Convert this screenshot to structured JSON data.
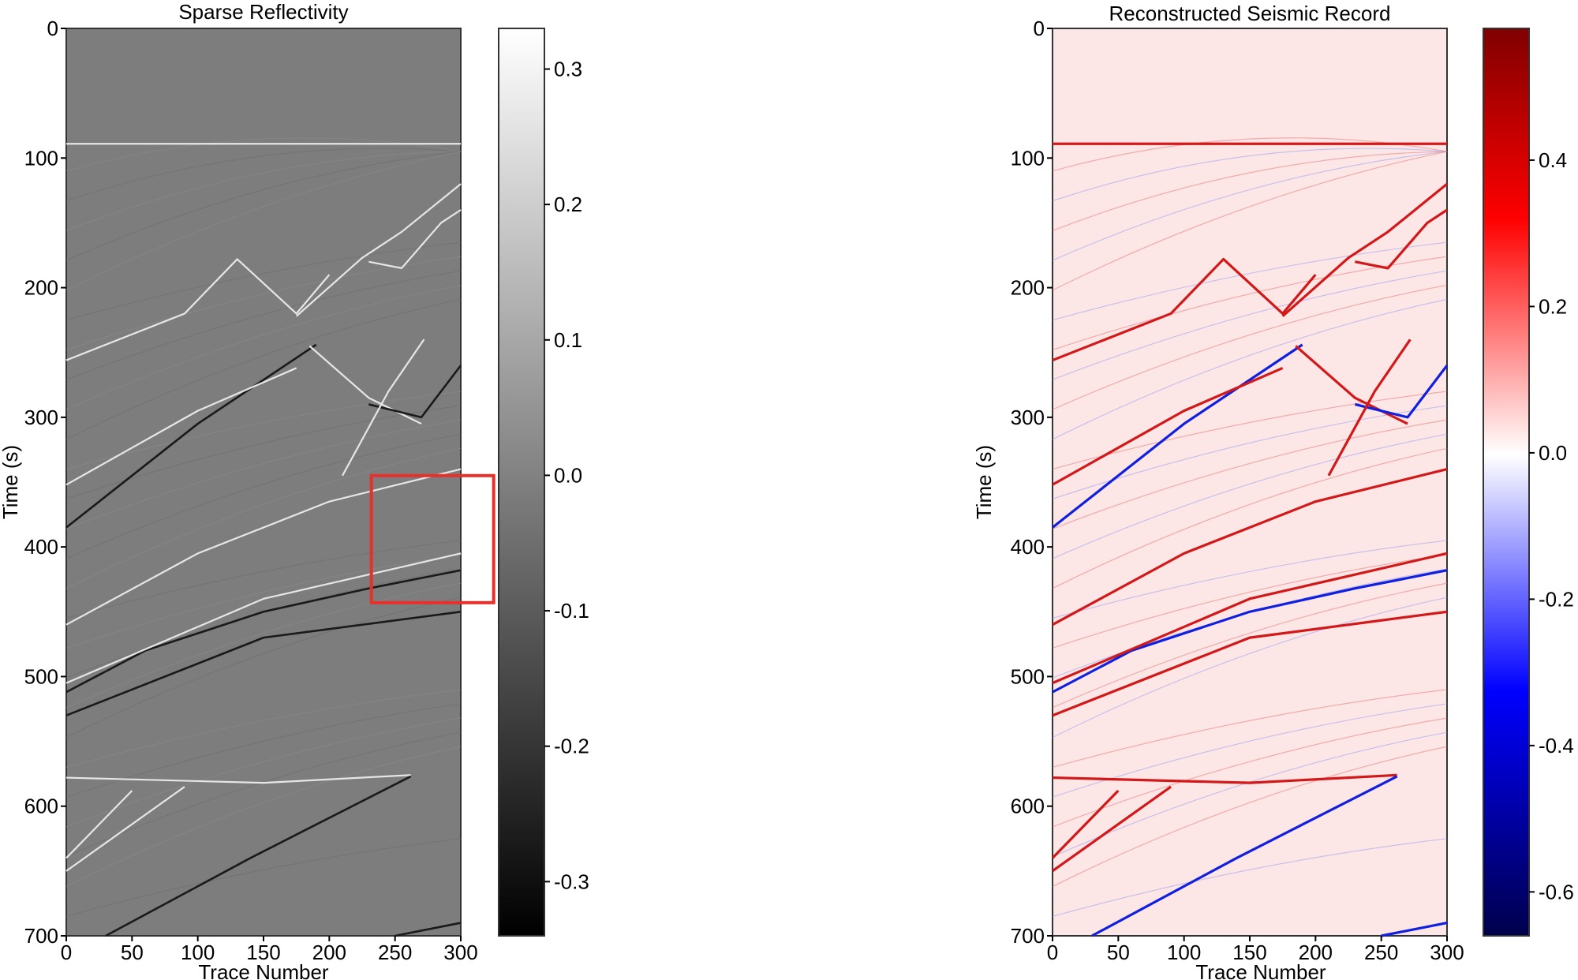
{
  "chart_data": [
    {
      "type": "heatmap",
      "title": "Sparse Reflectivity",
      "xlabel": "Trace Number",
      "ylabel": "Time (s)",
      "xlim": [
        0,
        300
      ],
      "ylim": [
        700,
        0
      ],
      "x_ticks": [
        "0",
        "50",
        "100",
        "150",
        "200",
        "250",
        "300"
      ],
      "y_ticks": [
        "0",
        "100",
        "200",
        "300",
        "400",
        "500",
        "600",
        "700"
      ],
      "colormap": "gray",
      "colorbar": {
        "range": [
          -0.34,
          0.33
        ],
        "ticks": [
          "0.3",
          "0.2",
          "0.1",
          "0.0",
          "-0.1",
          "-0.2",
          "-0.3"
        ]
      },
      "background_color": "#7d7d7d",
      "highlight_box": {
        "x": [
          232,
          325
        ],
        "y": [
          345,
          443
        ],
        "color": "#e8302a"
      },
      "events": [
        {
          "x": [
            0,
            300
          ],
          "y": [
            89,
            89
          ],
          "polarity": "bright"
        },
        {
          "x": [
            0,
            90,
            130,
            175,
            200
          ],
          "y": [
            256,
            220,
            178,
            220,
            190
          ],
          "polarity": "bright"
        },
        {
          "x": [
            175,
            225,
            255,
            300
          ],
          "y": [
            222,
            177,
            157,
            120
          ],
          "polarity": "bright"
        },
        {
          "x": [
            230,
            255,
            285,
            300
          ],
          "y": [
            180,
            185,
            150,
            140
          ],
          "polarity": "bright"
        },
        {
          "x": [
            0,
            100,
            190
          ],
          "y": [
            385,
            305,
            244
          ],
          "polarity": "dark"
        },
        {
          "x": [
            0,
            100,
            175
          ],
          "y": [
            352,
            295,
            262
          ],
          "polarity": "bright"
        },
        {
          "x": [
            185,
            230,
            270
          ],
          "y": [
            245,
            285,
            305
          ],
          "polarity": "bright"
        },
        {
          "x": [
            230,
            270,
            300
          ],
          "y": [
            290,
            300,
            260
          ],
          "polarity": "dark"
        },
        {
          "x": [
            210,
            245,
            272
          ],
          "y": [
            345,
            280,
            240
          ],
          "polarity": "bright"
        },
        {
          "x": [
            0,
            100,
            200,
            300
          ],
          "y": [
            460,
            405,
            365,
            340
          ],
          "polarity": "bright"
        },
        {
          "x": [
            0,
            60,
            150,
            230,
            300
          ],
          "y": [
            512,
            480,
            450,
            432,
            418
          ],
          "polarity": "dark"
        },
        {
          "x": [
            0,
            150,
            300
          ],
          "y": [
            505,
            440,
            405
          ],
          "polarity": "bright"
        },
        {
          "x": [
            0,
            150,
            300
          ],
          "y": [
            530,
            470,
            450
          ],
          "polarity": "dark"
        },
        {
          "x": [
            0,
            150,
            262
          ],
          "y": [
            578,
            582,
            576
          ],
          "polarity": "bright"
        },
        {
          "x": [
            30,
            140,
            262
          ],
          "y": [
            700,
            640,
            577
          ],
          "polarity": "dark"
        },
        {
          "x": [
            0,
            50
          ],
          "y": [
            640,
            588
          ],
          "polarity": "bright"
        },
        {
          "x": [
            0,
            90
          ],
          "y": [
            650,
            585
          ],
          "polarity": "bright"
        },
        {
          "x": [
            250,
            300
          ],
          "y": [
            700,
            690
          ],
          "polarity": "dark"
        }
      ]
    },
    {
      "type": "heatmap",
      "title": "Reconstructed Seismic Record",
      "xlabel": "Trace Number",
      "ylabel": "Time (s)",
      "xlim": [
        0,
        300
      ],
      "ylim": [
        700,
        0
      ],
      "x_ticks": [
        "0",
        "50",
        "100",
        "150",
        "200",
        "250",
        "300"
      ],
      "y_ticks": [
        "0",
        "100",
        "200",
        "300",
        "400",
        "500",
        "600",
        "700"
      ],
      "colormap": "seismic",
      "colorbar": {
        "range": [
          -0.66,
          0.58
        ],
        "ticks": [
          "0.4",
          "0.2",
          "0.0",
          "-0.2",
          "-0.4",
          "-0.6"
        ]
      },
      "background_color": "#fde6e6",
      "events": [
        {
          "x": [
            0,
            300
          ],
          "y": [
            89,
            89
          ],
          "polarity": "positive"
        },
        {
          "x": [
            0,
            90,
            130,
            175,
            200
          ],
          "y": [
            256,
            220,
            178,
            220,
            190
          ],
          "polarity": "positive"
        },
        {
          "x": [
            175,
            225,
            255,
            300
          ],
          "y": [
            222,
            177,
            157,
            120
          ],
          "polarity": "positive"
        },
        {
          "x": [
            230,
            255,
            285,
            300
          ],
          "y": [
            180,
            185,
            150,
            140
          ],
          "polarity": "positive"
        },
        {
          "x": [
            0,
            100,
            190
          ],
          "y": [
            385,
            305,
            244
          ],
          "polarity": "negative"
        },
        {
          "x": [
            0,
            100,
            175
          ],
          "y": [
            352,
            295,
            262
          ],
          "polarity": "positive"
        },
        {
          "x": [
            185,
            230,
            270
          ],
          "y": [
            245,
            285,
            305
          ],
          "polarity": "positive"
        },
        {
          "x": [
            230,
            270,
            300
          ],
          "y": [
            290,
            300,
            260
          ],
          "polarity": "negative"
        },
        {
          "x": [
            210,
            245,
            272
          ],
          "y": [
            345,
            280,
            240
          ],
          "polarity": "positive"
        },
        {
          "x": [
            0,
            100,
            200,
            300
          ],
          "y": [
            460,
            405,
            365,
            340
          ],
          "polarity": "positive"
        },
        {
          "x": [
            0,
            60,
            150,
            230,
            300
          ],
          "y": [
            512,
            480,
            450,
            432,
            418
          ],
          "polarity": "negative"
        },
        {
          "x": [
            0,
            150,
            300
          ],
          "y": [
            505,
            440,
            405
          ],
          "polarity": "positive"
        },
        {
          "x": [
            0,
            150,
            300
          ],
          "y": [
            530,
            470,
            450
          ],
          "polarity": "positive"
        },
        {
          "x": [
            0,
            150,
            262
          ],
          "y": [
            578,
            582,
            576
          ],
          "polarity": "positive"
        },
        {
          "x": [
            30,
            140,
            262
          ],
          "y": [
            700,
            640,
            577
          ],
          "polarity": "negative"
        },
        {
          "x": [
            0,
            50
          ],
          "y": [
            640,
            588
          ],
          "polarity": "positive"
        },
        {
          "x": [
            0,
            90
          ],
          "y": [
            650,
            585
          ],
          "polarity": "positive"
        },
        {
          "x": [
            250,
            300
          ],
          "y": [
            700,
            690
          ],
          "polarity": "negative"
        }
      ]
    }
  ]
}
